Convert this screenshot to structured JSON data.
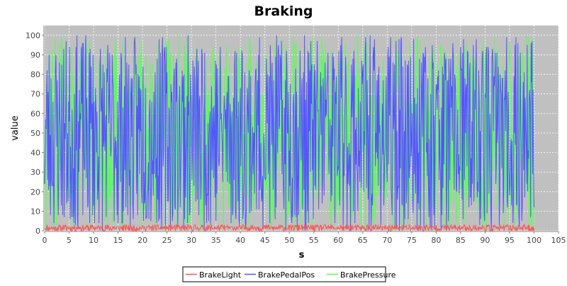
{
  "chart_data": {
    "type": "line",
    "title": "Braking",
    "xlabel": "s",
    "ylabel": "value",
    "xlim": [
      0,
      105
    ],
    "ylim": [
      0,
      105
    ],
    "x_ticks": [
      0,
      5,
      10,
      15,
      20,
      25,
      30,
      35,
      40,
      45,
      50,
      55,
      60,
      65,
      70,
      75,
      80,
      85,
      90,
      95,
      100,
      105
    ],
    "y_ticks": [
      0,
      10,
      20,
      30,
      40,
      50,
      60,
      70,
      80,
      90,
      100
    ],
    "x_data_range": [
      0,
      100
    ],
    "samples_per_unit": 10,
    "grid": true,
    "legend_position": "bottom",
    "plot_background": "#c0c0c0",
    "series": [
      {
        "name": "BrakeLight",
        "color": "#ff5555",
        "value_range": [
          0,
          3
        ],
        "values": []
      },
      {
        "name": "BrakePedalPos",
        "color": "#5555ff",
        "value_range": [
          0,
          100
        ],
        "values": []
      },
      {
        "name": "BrakePressure",
        "color": "#55ff55",
        "value_range": [
          0,
          100
        ],
        "values": []
      }
    ]
  }
}
